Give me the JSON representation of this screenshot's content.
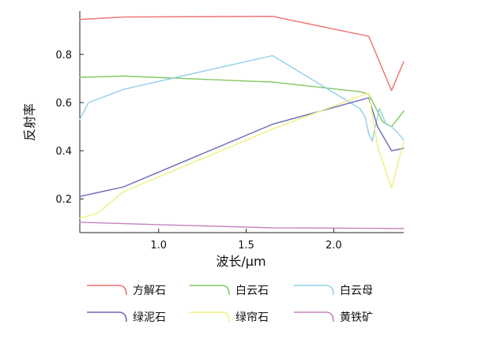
{
  "chart_data": {
    "type": "line",
    "title": "",
    "xlabel": "波长/μm",
    "ylabel": "反射率",
    "xlim": [
      0.55,
      2.4
    ],
    "ylim": [
      0.06,
      0.98
    ],
    "xticks": [
      1.0,
      1.5,
      2.0
    ],
    "xtick_labels": [
      "1.0",
      "1.5",
      "2.0"
    ],
    "yticks": [
      0.2,
      0.4,
      0.6,
      0.8
    ],
    "ytick_labels": [
      "0.2",
      "0.4",
      "0.6",
      "0.8"
    ],
    "grid": false,
    "legend_position": "bottom",
    "series": [
      {
        "name": "方解石",
        "color": "#f07070",
        "points": [
          [
            0.55,
            0.945
          ],
          [
            0.8,
            0.955
          ],
          [
            1.65,
            0.958
          ],
          [
            2.2,
            0.875
          ],
          [
            2.33,
            0.65
          ],
          [
            2.4,
            0.77
          ]
        ]
      },
      {
        "name": "白云石",
        "color": "#80c860",
        "points": [
          [
            0.55,
            0.705
          ],
          [
            0.8,
            0.71
          ],
          [
            1.65,
            0.685
          ],
          [
            2.15,
            0.645
          ],
          [
            2.2,
            0.635
          ],
          [
            2.28,
            0.52
          ],
          [
            2.33,
            0.5
          ],
          [
            2.4,
            0.565
          ]
        ]
      },
      {
        "name": "白云母",
        "color": "#90d0e8",
        "points": [
          [
            0.55,
            0.53
          ],
          [
            0.6,
            0.6
          ],
          [
            0.8,
            0.655
          ],
          [
            1.65,
            0.795
          ],
          [
            2.15,
            0.575
          ],
          [
            2.18,
            0.54
          ],
          [
            2.2,
            0.47
          ],
          [
            2.22,
            0.44
          ],
          [
            2.26,
            0.575
          ],
          [
            2.3,
            0.51
          ],
          [
            2.33,
            0.5
          ],
          [
            2.37,
            0.47
          ],
          [
            2.4,
            0.445
          ]
        ]
      },
      {
        "name": "绿泥石",
        "color": "#6a6ab8",
        "points": [
          [
            0.55,
            0.21
          ],
          [
            0.8,
            0.25
          ],
          [
            1.65,
            0.51
          ],
          [
            2.2,
            0.62
          ],
          [
            2.25,
            0.5
          ],
          [
            2.33,
            0.4
          ],
          [
            2.4,
            0.41
          ]
        ]
      },
      {
        "name": "绿帘石",
        "color": "#f0f080",
        "points": [
          [
            0.55,
            0.12
          ],
          [
            0.65,
            0.14
          ],
          [
            0.8,
            0.23
          ],
          [
            1.65,
            0.49
          ],
          [
            2.2,
            0.64
          ],
          [
            2.25,
            0.42
          ],
          [
            2.33,
            0.245
          ],
          [
            2.4,
            0.44
          ]
        ]
      },
      {
        "name": "黄铁矿",
        "color": "#c880c0",
        "points": [
          [
            0.55,
            0.103
          ],
          [
            1.0,
            0.093
          ],
          [
            1.65,
            0.08
          ],
          [
            2.4,
            0.077
          ]
        ]
      }
    ]
  }
}
